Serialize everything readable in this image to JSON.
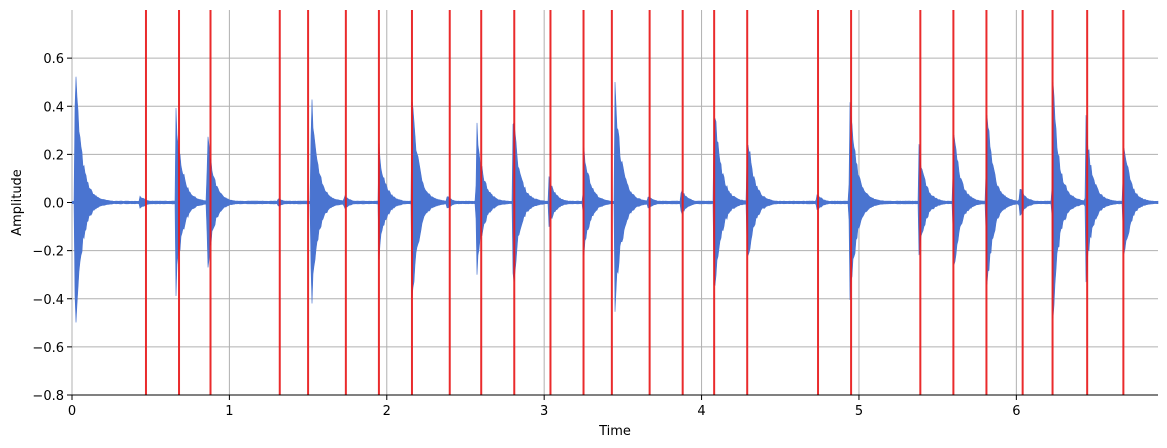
{
  "chart_data": {
    "type": "line",
    "title": "",
    "xlabel": "Time",
    "ylabel": "Amplitude",
    "xlim": [
      0,
      6.9
    ],
    "ylim": [
      -0.8,
      0.8
    ],
    "x_ticks": [
      0,
      1,
      2,
      3,
      4,
      5,
      6
    ],
    "x_tick_labels": [
      "0",
      "1",
      "2",
      "3",
      "4",
      "5",
      "6"
    ],
    "y_ticks": [
      -0.8,
      -0.6,
      -0.4,
      -0.2,
      0.0,
      0.2,
      0.4,
      0.6
    ],
    "y_tick_labels": [
      "−0.8",
      "−0.6",
      "−0.4",
      "−0.2",
      "0.0",
      "0.2",
      "0.4",
      "0.6"
    ],
    "grid": true,
    "colors": {
      "waveform": "#4a74d0",
      "onset": "#e8191a",
      "grid": "#b0b0b0"
    },
    "series": [
      {
        "kind": "waveform-envelope",
        "transients": [
          {
            "t": 0.02,
            "amp": 0.61
          },
          {
            "t": 0.43,
            "amp": 0.03
          },
          {
            "t": 0.66,
            "amp": 0.41
          },
          {
            "t": 0.86,
            "amp": 0.31
          },
          {
            "t": 1.31,
            "amp": 0.02
          },
          {
            "t": 1.52,
            "amp": 0.48
          },
          {
            "t": 1.73,
            "amp": 0.03
          },
          {
            "t": 1.95,
            "amp": 0.24
          },
          {
            "t": 2.16,
            "amp": 0.5
          },
          {
            "t": 2.38,
            "amp": 0.03
          },
          {
            "t": 2.57,
            "amp": 0.35
          },
          {
            "t": 2.8,
            "amp": 0.42
          },
          {
            "t": 3.03,
            "amp": 0.11
          },
          {
            "t": 3.25,
            "amp": 0.26
          },
          {
            "t": 3.45,
            "amp": 0.52
          },
          {
            "t": 3.66,
            "amp": 0.03
          },
          {
            "t": 3.87,
            "amp": 0.06
          },
          {
            "t": 4.08,
            "amp": 0.49
          },
          {
            "t": 4.29,
            "amp": 0.32
          },
          {
            "t": 4.73,
            "amp": 0.04
          },
          {
            "t": 4.94,
            "amp": 0.52
          },
          {
            "t": 5.38,
            "amp": 0.25
          },
          {
            "t": 5.6,
            "amp": 0.35
          },
          {
            "t": 5.81,
            "amp": 0.44
          },
          {
            "t": 6.02,
            "amp": 0.07
          },
          {
            "t": 6.23,
            "amp": 0.54
          },
          {
            "t": 6.44,
            "amp": 0.38
          },
          {
            "t": 6.68,
            "amp": 0.3
          }
        ]
      },
      {
        "kind": "onset-markers",
        "x": [
          0.47,
          0.68,
          0.88,
          1.32,
          1.5,
          1.74,
          1.95,
          2.16,
          2.4,
          2.6,
          2.81,
          3.04,
          3.25,
          3.43,
          3.67,
          3.88,
          4.08,
          4.29,
          4.74,
          4.95,
          5.39,
          5.6,
          5.81,
          6.04,
          6.23,
          6.45,
          6.68
        ]
      }
    ]
  }
}
